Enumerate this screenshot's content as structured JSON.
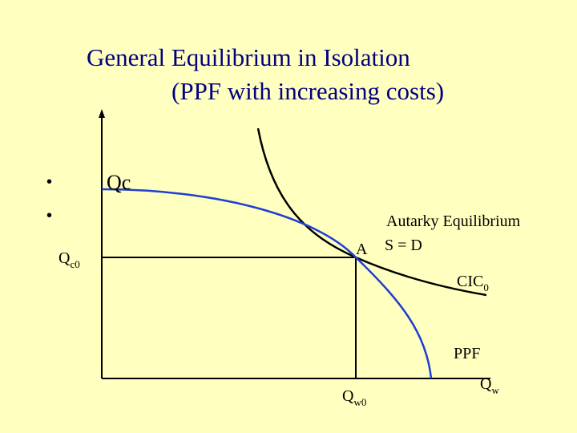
{
  "slide": {
    "title_line1": "General Equilibrium in Isolation",
    "title_line2": "(PPF with increasing costs)",
    "bullet_glyph": "•"
  },
  "axes": {
    "y_label": "Qc",
    "x_label_base": "Q",
    "x_label_sub": "w"
  },
  "point": {
    "name": "A",
    "y_label_base": "Q",
    "y_label_sub": "c0",
    "x_label_base": "Q",
    "x_label_sub": "w0"
  },
  "annotations": {
    "autarky": "Autarky Equilibrium",
    "condition": "S = D"
  },
  "curves": {
    "cic_base": "CIC",
    "cic_sub": "0",
    "ppf": "PPF"
  },
  "colors": {
    "title": "#000080",
    "background": "#ffffc0",
    "ppf_curve": "#1f3fd1",
    "cic_curve": "#000000",
    "axes": "#000000"
  }
}
